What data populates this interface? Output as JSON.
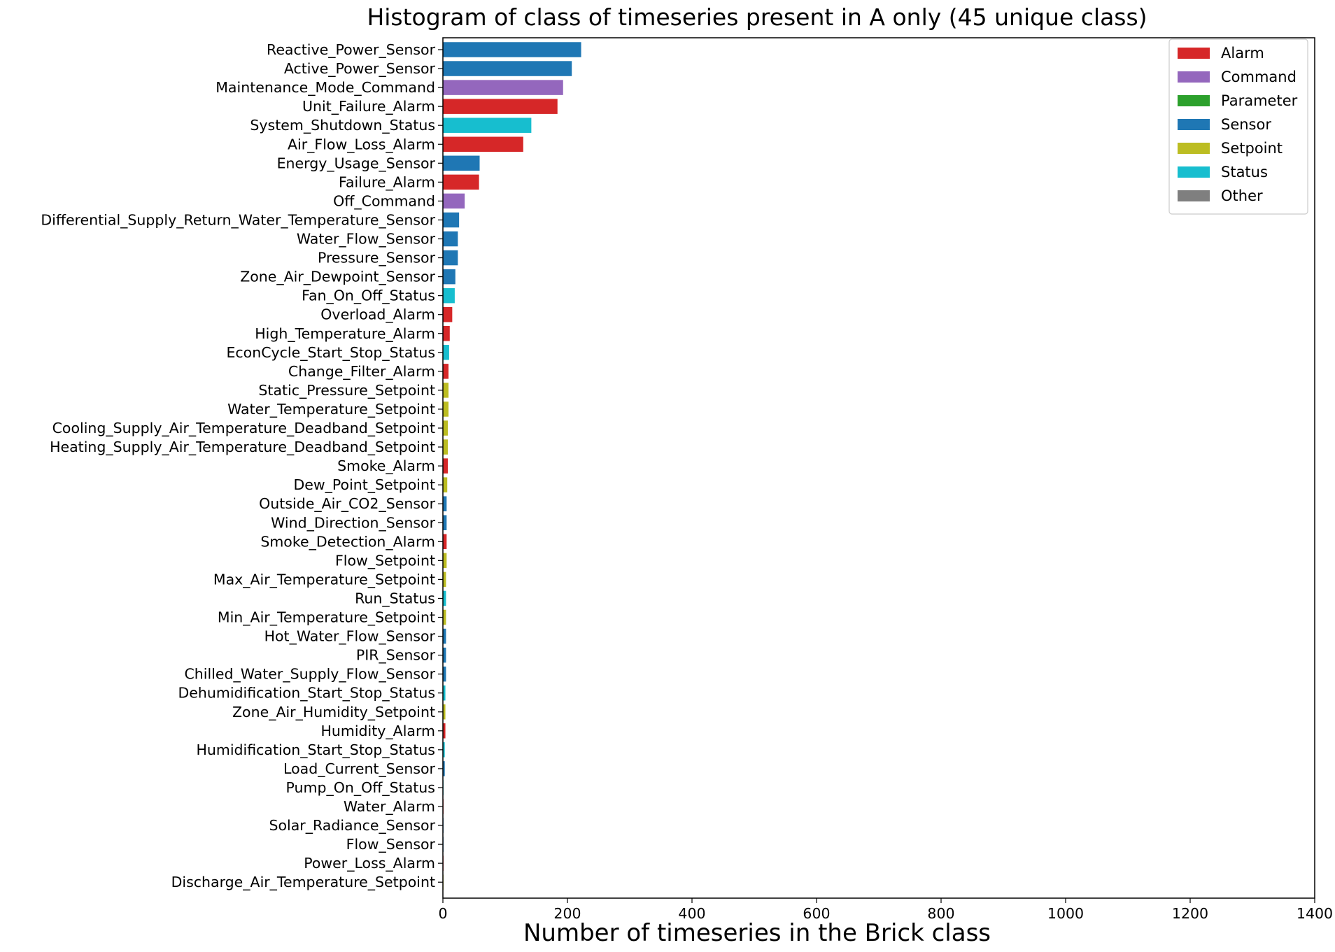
{
  "chart_data": {
    "type": "bar",
    "orientation": "horizontal",
    "title": "Histogram of class of timeseries present in A only (45 unique class)",
    "xlabel": "Number of timeseries in the Brick class",
    "ylabel": "",
    "xlim": [
      0,
      1400
    ],
    "xticks": [
      0,
      200,
      400,
      600,
      800,
      1000,
      1200,
      1400
    ],
    "grid": false,
    "legend_position": "top-right",
    "legend": [
      {
        "name": "Alarm",
        "color": "#d62728"
      },
      {
        "name": "Command",
        "color": "#9467bd"
      },
      {
        "name": "Parameter",
        "color": "#2ca02c"
      },
      {
        "name": "Sensor",
        "color": "#1f77b4"
      },
      {
        "name": "Setpoint",
        "color": "#bcbd22"
      },
      {
        "name": "Status",
        "color": "#17becf"
      },
      {
        "name": "Other",
        "color": "#7f7f7f"
      }
    ],
    "bars": [
      {
        "label": "Reactive_Power_Sensor",
        "value": 222,
        "group": "Sensor"
      },
      {
        "label": "Active_Power_Sensor",
        "value": 207,
        "group": "Sensor"
      },
      {
        "label": "Maintenance_Mode_Command",
        "value": 193,
        "group": "Command"
      },
      {
        "label": "Unit_Failure_Alarm",
        "value": 184,
        "group": "Alarm"
      },
      {
        "label": "System_Shutdown_Status",
        "value": 142,
        "group": "Status"
      },
      {
        "label": "Air_Flow_Loss_Alarm",
        "value": 129,
        "group": "Alarm"
      },
      {
        "label": "Energy_Usage_Sensor",
        "value": 59,
        "group": "Sensor"
      },
      {
        "label": "Failure_Alarm",
        "value": 58,
        "group": "Alarm"
      },
      {
        "label": "Off_Command",
        "value": 35,
        "group": "Command"
      },
      {
        "label": "Differential_Supply_Return_Water_Temperature_Sensor",
        "value": 26,
        "group": "Sensor"
      },
      {
        "label": "Water_Flow_Sensor",
        "value": 24,
        "group": "Sensor"
      },
      {
        "label": "Pressure_Sensor",
        "value": 24,
        "group": "Sensor"
      },
      {
        "label": "Zone_Air_Dewpoint_Sensor",
        "value": 20,
        "group": "Sensor"
      },
      {
        "label": "Fan_On_Off_Status",
        "value": 19,
        "group": "Status"
      },
      {
        "label": "Overload_Alarm",
        "value": 15,
        "group": "Alarm"
      },
      {
        "label": "High_Temperature_Alarm",
        "value": 11,
        "group": "Alarm"
      },
      {
        "label": "EconCycle_Start_Stop_Status",
        "value": 10,
        "group": "Status"
      },
      {
        "label": "Change_Filter_Alarm",
        "value": 9,
        "group": "Alarm"
      },
      {
        "label": "Static_Pressure_Setpoint",
        "value": 9,
        "group": "Setpoint"
      },
      {
        "label": "Water_Temperature_Setpoint",
        "value": 9,
        "group": "Setpoint"
      },
      {
        "label": "Cooling_Supply_Air_Temperature_Deadband_Setpoint",
        "value": 8,
        "group": "Setpoint"
      },
      {
        "label": "Heating_Supply_Air_Temperature_Deadband_Setpoint",
        "value": 8,
        "group": "Setpoint"
      },
      {
        "label": "Smoke_Alarm",
        "value": 8,
        "group": "Alarm"
      },
      {
        "label": "Dew_Point_Setpoint",
        "value": 7,
        "group": "Setpoint"
      },
      {
        "label": "Outside_Air_CO2_Sensor",
        "value": 6,
        "group": "Sensor"
      },
      {
        "label": "Wind_Direction_Sensor",
        "value": 6,
        "group": "Sensor"
      },
      {
        "label": "Smoke_Detection_Alarm",
        "value": 6,
        "group": "Alarm"
      },
      {
        "label": "Flow_Setpoint",
        "value": 6,
        "group": "Setpoint"
      },
      {
        "label": "Max_Air_Temperature_Setpoint",
        "value": 5,
        "group": "Setpoint"
      },
      {
        "label": "Run_Status",
        "value": 5,
        "group": "Status"
      },
      {
        "label": "Min_Air_Temperature_Setpoint",
        "value": 5,
        "group": "Setpoint"
      },
      {
        "label": "Hot_Water_Flow_Sensor",
        "value": 5,
        "group": "Sensor"
      },
      {
        "label": "PIR_Sensor",
        "value": 5,
        "group": "Sensor"
      },
      {
        "label": "Chilled_Water_Supply_Flow_Sensor",
        "value": 5,
        "group": "Sensor"
      },
      {
        "label": "Dehumidification_Start_Stop_Status",
        "value": 4,
        "group": "Status"
      },
      {
        "label": "Zone_Air_Humidity_Setpoint",
        "value": 4,
        "group": "Setpoint"
      },
      {
        "label": "Humidity_Alarm",
        "value": 4,
        "group": "Alarm"
      },
      {
        "label": "Humidification_Start_Stop_Status",
        "value": 3,
        "group": "Status"
      },
      {
        "label": "Load_Current_Sensor",
        "value": 3,
        "group": "Sensor"
      },
      {
        "label": "Pump_On_Off_Status",
        "value": 1,
        "group": "Status"
      },
      {
        "label": "Water_Alarm",
        "value": 1,
        "group": "Alarm"
      },
      {
        "label": "Solar_Radiance_Sensor",
        "value": 1,
        "group": "Sensor"
      },
      {
        "label": "Flow_Sensor",
        "value": 1,
        "group": "Sensor"
      },
      {
        "label": "Power_Loss_Alarm",
        "value": 1,
        "group": "Alarm"
      },
      {
        "label": "Discharge_Air_Temperature_Setpoint",
        "value": 1,
        "group": "Setpoint"
      }
    ]
  }
}
